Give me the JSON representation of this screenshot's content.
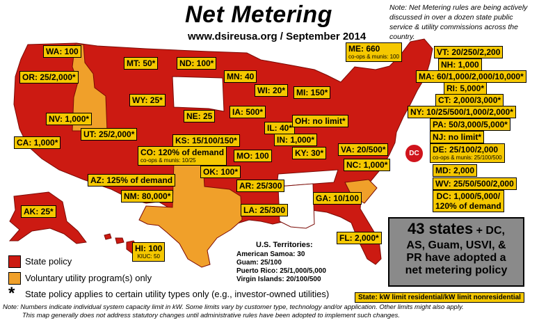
{
  "header": {
    "title": "Net Metering",
    "subtitle": "www.dsireusa.org / September 2014",
    "note": "Note: Net Metering rules are being actively discussed in over a dozen state public service & utility commissions across the country."
  },
  "colors": {
    "state_policy": "#cc1a12",
    "voluntary": "#f0a02a",
    "none": "#ffffff",
    "label_bg": "#f5c800"
  },
  "states": {
    "WA": "WA: 100",
    "OR": "OR: 25/2,000*",
    "CA": "CA: 1,000*",
    "NV": "NV: 1,000*",
    "MT": "MT: 50*",
    "WY": "WY: 25*",
    "UT": "UT: 25/2,000*",
    "AZ": "AZ: 125% of demand",
    "CO": "CO: 120% of demand",
    "CO_sub": "co-ops & munis: 10/25",
    "NM": "NM: 80,000*",
    "ND": "ND: 100*",
    "NE": "NE: 25",
    "KS": "KS: 15/100/150*",
    "OK": "OK: 100*",
    "MN": "MN: 40",
    "IA": "IA: 500*",
    "MO": "MO: 100",
    "AR": "AR: 25/300",
    "LA": "LA: 25/300",
    "WI": "WI: 20*",
    "IL": "IL: 40*",
    "MI": "MI: 150*",
    "IN": "IN: 1,000*",
    "OH": "OH: no limit*",
    "KY": "KY: 30*",
    "VA": "VA: 20/500*",
    "NC": "NC: 1,000*",
    "GA": "GA: 10/100",
    "FL": "FL: 2,000*",
    "AK": "AK: 25*",
    "HI": "HI: 100",
    "HI_sub": "KIUC: 50",
    "ME": "ME: 660",
    "ME_sub": "co-ops & munis: 100",
    "VT": "VT: 20/250/2,200",
    "NH": "NH: 1,000",
    "MA": "MA: 60/1,000/2,000/10,000*",
    "RI": "RI: 5,000*",
    "CT": "CT: 2,000/3,000*",
    "NY": "NY: 10/25/500/1,000/2,000*",
    "PA": "PA: 50/3,000/5,000*",
    "NJ": "NJ: no limit*",
    "DE": "DE: 25/100/2,000",
    "DE_sub": "co-ops & munis: 25/100/500",
    "MD": "MD: 2,000",
    "WV": "WV: 25/50/500/2,000",
    "DC": "DC: 1,000/5,000/",
    "DC_line2": "120% of demand",
    "DC_marker": "DC"
  },
  "territories": {
    "title": "U.S. Territories:",
    "items": [
      "American Samoa: 30",
      "Guam: 25/100",
      "Puerto Rico: 25/1,000/5,000",
      "Virgin Islands: 20/100/500"
    ]
  },
  "summary": {
    "line1_big": "43 states",
    "line1_small": " + DC,",
    "line2": "AS, Guam, USVI, &",
    "line3": "PR have adopted a",
    "line4": "net metering policy"
  },
  "legend": {
    "state_policy": "State policy",
    "voluntary": "Voluntary utility program(s) only",
    "asterisk_symbol": "*",
    "asterisk": "State policy applies to certain utility types only (e.g., investor-owned utilities)",
    "key": "State: kW limit residential/kW limit nonresidential"
  },
  "footer": {
    "note1": "Note: Numbers indicate individual system capacity limit in kW. Some limits vary by customer type, technology and/or application. Other limits might also apply.",
    "note2": "This map generally does not address statutory changes until administrative rules have been adopted to implement such changes."
  }
}
